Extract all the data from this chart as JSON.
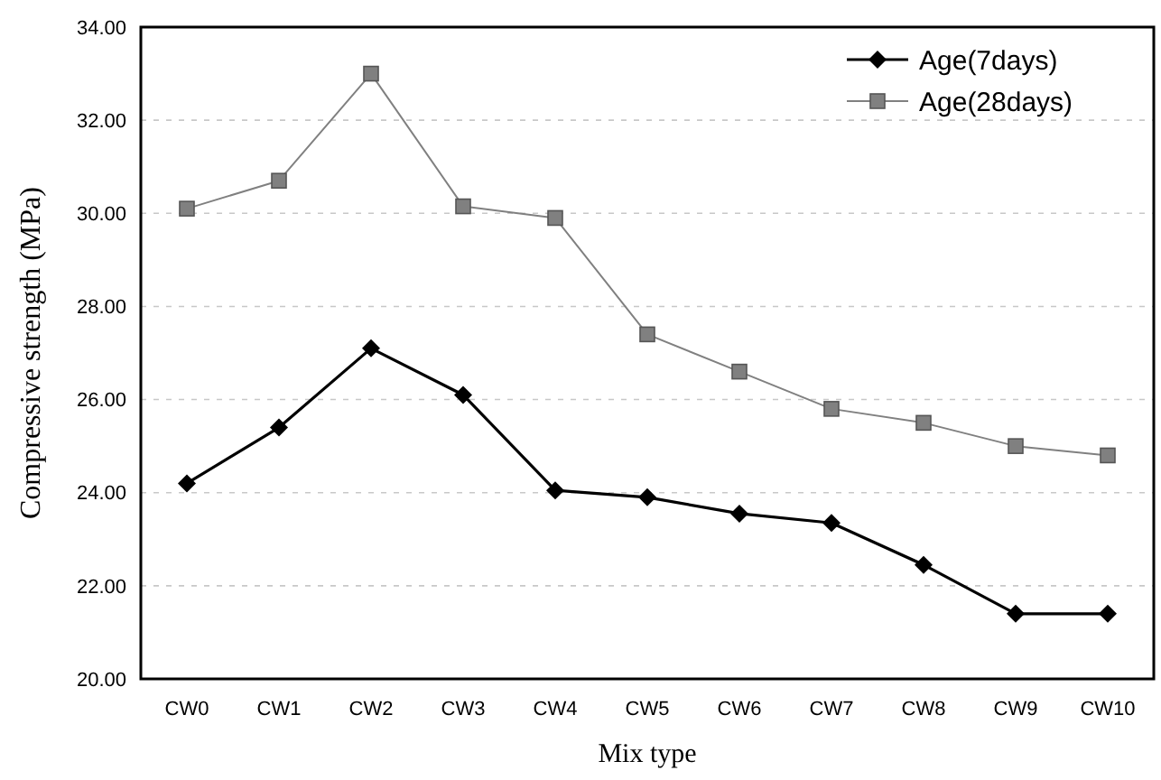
{
  "chart_data": {
    "type": "line",
    "xlabel": "Mix type",
    "ylabel": "Compressive strength (MPa)",
    "categories": [
      "CW0",
      "CW1",
      "CW2",
      "CW3",
      "CW4",
      "CW5",
      "CW6",
      "CW7",
      "CW8",
      "CW9",
      "CW10"
    ],
    "series": [
      {
        "name": "Age(7days)",
        "color": "#000000",
        "marker": "diamond",
        "values": [
          24.2,
          25.4,
          27.1,
          26.1,
          24.05,
          23.9,
          23.55,
          23.35,
          22.45,
          21.4,
          21.4
        ]
      },
      {
        "name": "Age(28days)",
        "color": "#808080",
        "marker": "square",
        "values": [
          30.1,
          30.7,
          33.0,
          30.15,
          29.9,
          27.4,
          26.6,
          25.8,
          25.5,
          25.0,
          24.8
        ]
      }
    ],
    "ylim": [
      20,
      34
    ],
    "yticks": [
      {
        "value": 20,
        "label": "20.00"
      },
      {
        "value": 22,
        "label": "22.00"
      },
      {
        "value": 24,
        "label": "24.00"
      },
      {
        "value": 26,
        "label": "26.00"
      },
      {
        "value": 28,
        "label": "28.00"
      },
      {
        "value": 30,
        "label": "30.00"
      },
      {
        "value": 32,
        "label": "32.00"
      },
      {
        "value": 34,
        "label": "34.00"
      }
    ],
    "grid": "y",
    "legend": "top right",
    "line_style": "solid"
  }
}
